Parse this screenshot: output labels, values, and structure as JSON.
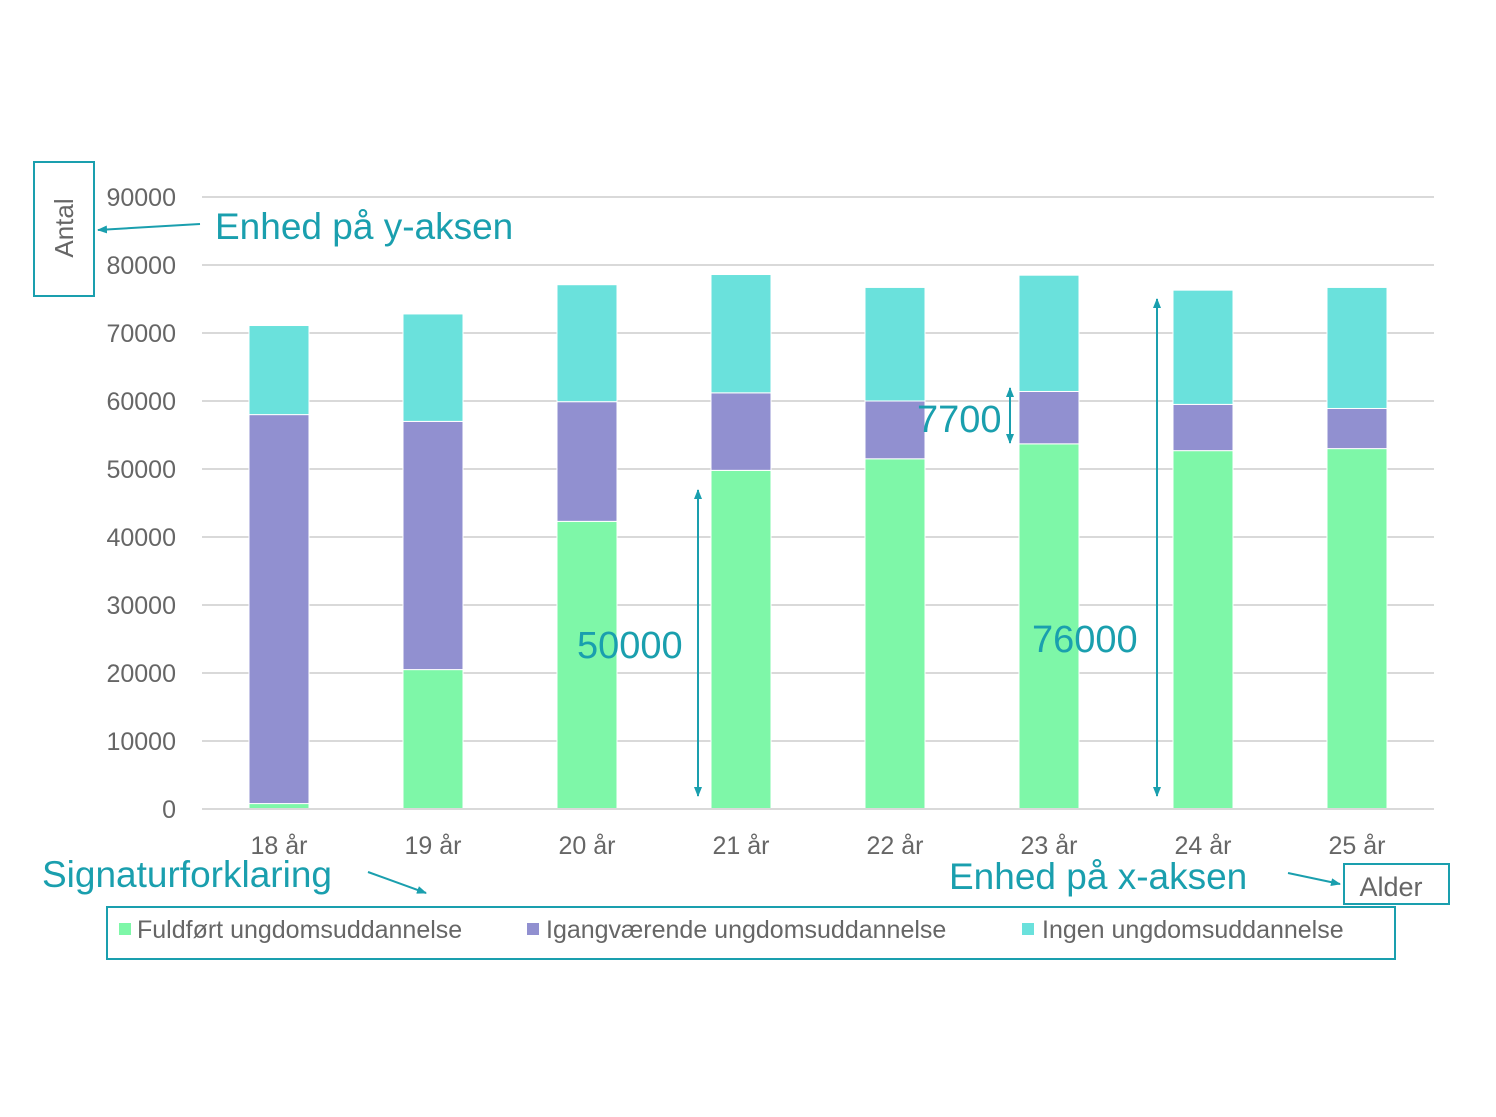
{
  "chart_data": {
    "type": "bar",
    "stacked": true,
    "categories": [
      "18 år",
      "19 år",
      "20 år",
      "21 år",
      "22 år",
      "23 år",
      "24 år",
      "25 år"
    ],
    "series": [
      {
        "name": "Fuldført ungdomsuddannelse",
        "color": "#7ef7a8",
        "values": [
          800,
          20500,
          42300,
          49800,
          51500,
          53700,
          52700,
          53000
        ]
      },
      {
        "name": "Igangværende ungdomsuddannelse",
        "color": "#9190d0",
        "values": [
          57200,
          36500,
          17600,
          11400,
          8500,
          7700,
          6800,
          5900
        ]
      },
      {
        "name": "Ingen ungdomsuddannelse",
        "color": "#6ae1dc",
        "values": [
          13100,
          15800,
          17200,
          17400,
          16700,
          17100,
          16800,
          17800
        ]
      }
    ],
    "ylim": [
      0,
      90000
    ],
    "yticks": [
      "0",
      "10000",
      "20000",
      "30000",
      "40000",
      "50000",
      "60000",
      "70000",
      "80000",
      "90000"
    ],
    "ylabel": "Antal",
    "xlabel": "Alder",
    "grid": true,
    "legend_position": "bottom",
    "annotations": {
      "y_unit_label": "Enhed på y-aksen",
      "x_unit_label": "Enhed på x-aksen",
      "legend_label": "Signaturforklaring",
      "measure_50000": "50000",
      "measure_76000": "76000",
      "measure_7700": "7700"
    },
    "accent_color": "#1a9fae"
  }
}
